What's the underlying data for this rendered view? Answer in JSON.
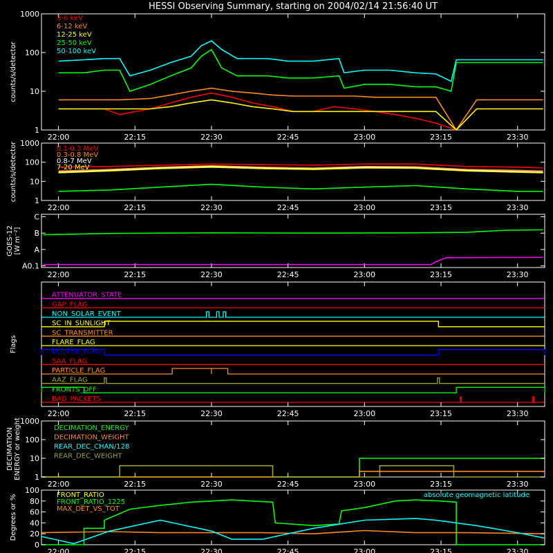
{
  "title": "HESSI Observing Summary, starting on 2004/02/14 21:56:40 UT",
  "time_ticks": [
    "22:00",
    "22:15",
    "22:30",
    "22:45",
    "23:00",
    "23:15",
    "23:30"
  ],
  "time_tick_minutes": [
    0,
    15,
    30,
    45,
    60,
    75,
    90
  ],
  "time_range_minutes": [
    -3.33,
    95.33
  ],
  "colors": {
    "red": "#ff0000",
    "orange": "#ff8c1a",
    "yellow": "#ffff00",
    "green": "#00ff00",
    "cyan": "#00ffff",
    "magenta": "#ff00ff",
    "blue": "#0000ff",
    "olive": "#a0a030",
    "white": "#ffffff"
  },
  "chart_data": [
    {
      "type": "line",
      "id": "lo_energy",
      "ylabel": "counts/s/detector",
      "yscale": "log",
      "ylim": [
        1,
        1000
      ],
      "ytick_labels": [
        "1",
        "10",
        "100",
        "1000"
      ],
      "ytick_values": [
        1,
        10,
        100,
        1000
      ],
      "series": [
        {
          "name": "3-6 keV",
          "color": "#ff0000",
          "x": [
            0,
            5,
            9,
            12,
            18,
            22,
            26,
            30,
            34,
            38,
            42,
            46,
            50,
            54,
            58,
            62,
            66,
            70,
            74,
            78,
            82,
            88,
            95
          ],
          "y": [
            3.5,
            3.5,
            3.5,
            2.5,
            3.5,
            5,
            7,
            9,
            7,
            5,
            4,
            3,
            3,
            4,
            3.5,
            3,
            2.5,
            2,
            1.5,
            1,
            3.5,
            3.5,
            3.5
          ]
        },
        {
          "name": "6-12 keV",
          "color": "#ff8c1a",
          "x": [
            0,
            5,
            9,
            12,
            18,
            22,
            26,
            30,
            34,
            38,
            42,
            46,
            50,
            54,
            58,
            62,
            66,
            70,
            74,
            78,
            82,
            88,
            95
          ],
          "y": [
            6,
            6,
            6,
            6,
            6.5,
            8,
            10,
            12,
            10,
            9,
            8,
            7.5,
            7.5,
            7.5,
            7.5,
            7,
            7,
            7,
            7,
            1,
            6,
            6,
            6
          ]
        },
        {
          "name": "12-25 keV",
          "color": "#ffff00",
          "x": [
            0,
            5,
            9,
            12,
            18,
            22,
            26,
            30,
            34,
            38,
            42,
            46,
            50,
            54,
            58,
            62,
            66,
            70,
            74,
            78,
            82,
            88,
            95
          ],
          "y": [
            3.5,
            3.5,
            3.5,
            3.5,
            3.5,
            4,
            5,
            6,
            5,
            4,
            3.5,
            3,
            3,
            3,
            3,
            3,
            3,
            3,
            3,
            1,
            3.5,
            3.5,
            3.5
          ]
        },
        {
          "name": "25-50 keV",
          "color": "#00ff00",
          "x": [
            0,
            5,
            9,
            12,
            14,
            18,
            22,
            26,
            28,
            30,
            32,
            35,
            41,
            45,
            50,
            55,
            56,
            60,
            65,
            70,
            74,
            77,
            78,
            82,
            88,
            95
          ],
          "y": [
            30,
            30,
            35,
            35,
            10,
            15,
            25,
            40,
            80,
            120,
            40,
            25,
            25,
            22,
            22,
            25,
            12,
            15,
            15,
            13,
            13,
            10,
            55,
            55,
            55,
            55
          ]
        },
        {
          "name": "50-100 keV",
          "color": "#00ffff",
          "x": [
            0,
            5,
            9,
            12,
            14,
            18,
            22,
            26,
            28,
            30,
            32,
            35,
            41,
            45,
            50,
            55,
            56,
            60,
            65,
            70,
            74,
            77,
            78,
            82,
            88,
            95
          ],
          "y": [
            60,
            65,
            70,
            70,
            25,
            35,
            55,
            80,
            150,
            200,
            120,
            70,
            70,
            60,
            60,
            70,
            30,
            35,
            35,
            30,
            28,
            18,
            65,
            65,
            65,
            65
          ]
        }
      ]
    },
    {
      "type": "line",
      "id": "hi_energy",
      "ylabel": "counts/s/detector",
      "yscale": "log",
      "ylim": [
        1,
        1000
      ],
      "ytick_labels": [
        "1",
        "10",
        "100",
        "1000"
      ],
      "ytick_values": [
        1,
        10,
        100,
        1000
      ],
      "series": [
        {
          "name": "0.1-0.3 MeV",
          "color": "#ff0000",
          "x": [
            0,
            10,
            20,
            30,
            40,
            50,
            60,
            70,
            80,
            90,
            95
          ],
          "y": [
            55,
            60,
            70,
            80,
            75,
            70,
            80,
            80,
            60,
            55,
            50
          ]
        },
        {
          "name": "0.3-0.8 MeV",
          "color": "#ff8c1a",
          "x": [
            0,
            10,
            20,
            30,
            40,
            50,
            60,
            70,
            80,
            90,
            95
          ],
          "y": [
            35,
            42,
            55,
            65,
            55,
            50,
            60,
            58,
            42,
            38,
            35
          ]
        },
        {
          "name": "0.8-7 MeV",
          "color": "#ffffff",
          "x": [
            0,
            10,
            20,
            30,
            40,
            50,
            60,
            70,
            80,
            90,
            95
          ],
          "y": [
            30,
            38,
            50,
            60,
            50,
            45,
            55,
            52,
            38,
            33,
            30
          ]
        },
        {
          "name": "7-20 MeV",
          "color": "#ffff00",
          "x": [
            0,
            10,
            20,
            30,
            40,
            50,
            60,
            70,
            80,
            90,
            95
          ],
          "y": [
            28,
            35,
            46,
            55,
            46,
            42,
            50,
            48,
            35,
            30,
            28
          ]
        },
        {
          "name": "",
          "color": "#00ff00",
          "x": [
            0,
            10,
            20,
            30,
            40,
            50,
            60,
            70,
            80,
            90,
            95
          ],
          "y": [
            3,
            3.5,
            5,
            7,
            5,
            4,
            5,
            6,
            4,
            3,
            3
          ]
        }
      ]
    },
    {
      "type": "line",
      "id": "goes",
      "ylabel": "GOES-12 [W m^-2]",
      "ylabel_lines": [
        "GOES-12",
        "[W m⁻²]"
      ],
      "ytick_labels": [
        "A0.1",
        "A",
        "B",
        "C"
      ],
      "ytick_values": [
        0,
        1,
        2,
        3
      ],
      "ylim": [
        -0.1,
        3.15
      ],
      "series": [
        {
          "name": "",
          "color": "#00ff00",
          "x": [
            -3,
            10,
            30,
            50,
            70,
            80,
            88,
            95
          ],
          "y": [
            1.9,
            1.98,
            2.02,
            2.0,
            2.02,
            2.05,
            2.18,
            2.2
          ]
        },
        {
          "name": "",
          "color": "#ff00ff",
          "x": [
            -3,
            20,
            40,
            60,
            73,
            74,
            75,
            76,
            95
          ],
          "y": [
            0.08,
            0.08,
            0.08,
            0.08,
            0.08,
            0.25,
            0.38,
            0.5,
            0.52
          ]
        }
      ]
    },
    {
      "type": "line",
      "id": "flags",
      "ylabel": "Flags",
      "flags": [
        {
          "name": "ATTENUATOR_STATE",
          "color": "#ff00ff",
          "level": 12,
          "high": [],
          "labelled": true
        },
        {
          "name": "GAP_FLAG",
          "color": "#ff0000",
          "level": 11,
          "high": [],
          "labelled": true
        },
        {
          "name": "NON_SOLAR_EVENT",
          "color": "#00ffff",
          "level": 10,
          "high": [
            [
              29.0,
              29.5
            ],
            [
              31.0,
              31.5
            ],
            [
              32.3,
              32.8
            ]
          ],
          "labelled": true
        },
        {
          "name": "SC_IN_SUNLIGHT",
          "color": "#ffff00",
          "level": 9,
          "high": [
            [
              9.0,
              74.5
            ]
          ],
          "labelled": true
        },
        {
          "name": "SC_TRANSMITTER",
          "color": "#ff8c1a",
          "level": 8,
          "high": [],
          "labelled": true
        },
        {
          "name": "FLARE_FLAG",
          "color": "#ffff00",
          "level": 7,
          "high": [],
          "labelled": true
        },
        {
          "name": "ECLIPSE_FLAG",
          "color": "#0000ff",
          "level": 6,
          "high": [
            [
              -3.33,
              9.0
            ],
            [
              74.5,
              95.33
            ]
          ],
          "labelled": true
        },
        {
          "name": "SAA_FLAG",
          "color": "#ff0000",
          "level": 5,
          "high": [],
          "labelled": true
        },
        {
          "name": "PARTICLE_FLAG",
          "color": "#ff8c1a",
          "level": 4,
          "high": [
            [
              22.3,
              30.0
            ],
            [
              30.0,
              33.2
            ]
          ],
          "labelled": true
        },
        {
          "name": "AAZ_FLAG",
          "color": "#a0a030",
          "level": 3,
          "high": [
            [
              9.0,
              9.4
            ],
            [
              74.3,
              74.7
            ]
          ],
          "labelled": true
        },
        {
          "name": "FRONTS_OFF",
          "color": "#00ff00",
          "level": 2,
          "high": [
            [
              -3.33,
              5.0
            ],
            [
              78.0,
              95.33
            ]
          ],
          "labelled": true
        },
        {
          "name": "BAD_PACKETS",
          "color": "#ff0000",
          "level": 1,
          "high": [
            [
              78.8,
              79.0
            ],
            [
              93.0,
              93.2
            ]
          ],
          "labelled": true
        }
      ]
    },
    {
      "type": "line",
      "id": "decimation",
      "ylabel": "DECIMATION ENERGY or weight",
      "ylabel_lines": [
        "DECIMATION",
        "ENERGY or weight"
      ],
      "yscale": "log",
      "ylim": [
        1,
        1000
      ],
      "ytick_labels": [
        "1",
        "10",
        "100",
        "1000"
      ],
      "ytick_values": [
        1,
        10,
        100,
        1000
      ],
      "series": [
        {
          "name": "DECIMATION_ENERGY",
          "color": "#00ff00",
          "x": [
            -3.33,
            59.0,
            59.0,
            95.33
          ],
          "y": [
            1,
            1,
            10,
            10
          ]
        },
        {
          "name": "DECIMATION_WEIGHT",
          "color": "#ff8c1a",
          "x": [
            -3.33,
            59.0,
            59.0,
            95.33
          ],
          "y": [
            1,
            1,
            2,
            2
          ]
        },
        {
          "name": "REAR_DEC_CHAN/128",
          "color": "#00ffff",
          "x": [],
          "y": []
        },
        {
          "name": "REAR_DEC_WEIGHT",
          "color": "#a0a030",
          "x": [
            -3.33,
            12.0,
            12.0,
            42.0,
            42.0,
            63.0,
            63.0,
            77.5,
            77.5,
            95.33
          ],
          "y": [
            1,
            1,
            4,
            4,
            1,
            1,
            4,
            4,
            1,
            1
          ]
        }
      ]
    },
    {
      "type": "line",
      "id": "ratios",
      "ylabel": "Degrees or %",
      "ylim": [
        0,
        100
      ],
      "ytick_labels": [
        "0",
        "20",
        "40",
        "60",
        "80",
        "100"
      ],
      "ytick_values": [
        0,
        20,
        40,
        60,
        80,
        100
      ],
      "annotation": "absolute geomagnetic latitude",
      "annotation_color": "#00ffff",
      "series": [
        {
          "name": "FRONT_RATIO",
          "color": "#ffff00",
          "x": [],
          "y": []
        },
        {
          "name": "FRONT_RATIO_1225",
          "color": "#00ff00",
          "x": [
            -3.33,
            5.0,
            5.0,
            9.0,
            9.0,
            14,
            20,
            26,
            30,
            34,
            38,
            42,
            42.5,
            50,
            55,
            55.5,
            60,
            66,
            70,
            75,
            78,
            78,
            95.33
          ],
          "y": [
            0,
            0,
            30,
            30,
            45,
            65,
            72,
            78,
            80,
            82,
            80,
            78,
            40,
            35,
            38,
            62,
            68,
            80,
            82,
            80,
            78,
            0,
            0
          ]
        },
        {
          "name": "MAX_DET_VS_TOT",
          "color": "#ff8c1a",
          "x": [
            -3.33,
            10,
            20,
            30,
            40,
            50,
            60,
            70,
            80,
            95.33
          ],
          "y": [
            22,
            24,
            22,
            22,
            22,
            20,
            26,
            22,
            22,
            20
          ]
        },
        {
          "name": "absolute geomagnetic latitude",
          "color": "#00ffff",
          "x": [
            -3.33,
            3,
            10,
            20,
            30,
            34,
            40,
            50,
            60,
            70,
            74,
            82,
            90,
            95.33
          ],
          "y": [
            15,
            2,
            25,
            45,
            25,
            10,
            10,
            30,
            45,
            48,
            45,
            35,
            22,
            12
          ]
        }
      ]
    }
  ]
}
